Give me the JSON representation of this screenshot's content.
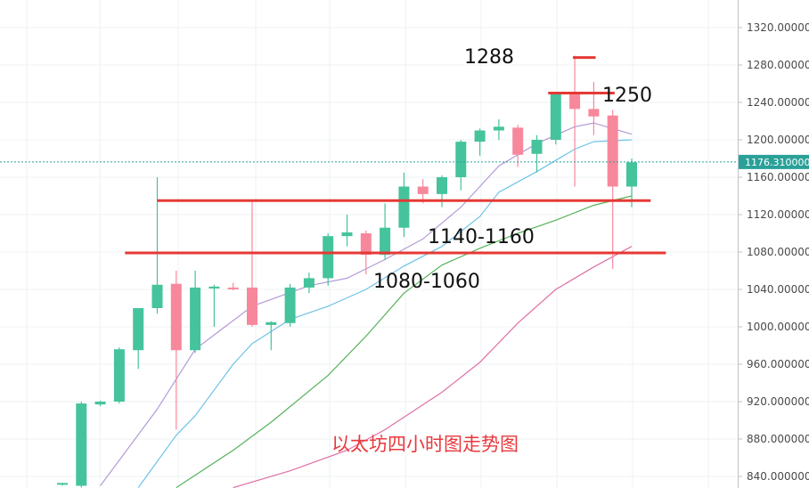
{
  "caption": "以太坊四小时图走势图",
  "price_tag": "1176.310000",
  "colors": {
    "up": "#45c39c",
    "down": "#f7889c",
    "ma_purple": "#b49ad6",
    "ma_blue": "#6fc3e8",
    "ma_green": "#57b25a",
    "ma_pink": "#e06fa6",
    "level_line": "#e53935",
    "grid": "#eef0f3"
  },
  "annotations": [
    {
      "text": "1288",
      "level": 1288
    },
    {
      "text": "1250",
      "level": 1250
    },
    {
      "text": "1140-1160",
      "level": 1135
    },
    {
      "text": "1080-1060",
      "level": 1079
    }
  ],
  "chart_data": {
    "type": "candlestick",
    "y_axis": {
      "ticks": [
        "1320.000000",
        "1280.000000",
        "1240.000000",
        "1200.000000",
        "1160.000000",
        "1120.000000",
        "1080.000000",
        "1040.000000",
        "1000.000000",
        "960.000000",
        "920.000000",
        "880.000000",
        "840.000000"
      ],
      "range": [
        828,
        1335
      ]
    },
    "last_price": 1176.31,
    "candles": [
      {
        "o": 832,
        "h": 833,
        "l": 830,
        "c": 833
      },
      {
        "o": 830,
        "h": 920,
        "l": 828,
        "c": 918
      },
      {
        "o": 917,
        "h": 921,
        "l": 915,
        "c": 920
      },
      {
        "o": 920,
        "h": 978,
        "l": 918,
        "c": 976
      },
      {
        "o": 975,
        "h": 1020,
        "l": 955,
        "c": 1020
      },
      {
        "o": 1020,
        "h": 1160,
        "l": 1014,
        "c": 1045
      },
      {
        "o": 1046,
        "h": 1060,
        "l": 890,
        "c": 975
      },
      {
        "o": 975,
        "h": 1060,
        "l": 972,
        "c": 1042
      },
      {
        "o": 1041,
        "h": 1045,
        "l": 1000,
        "c": 1043
      },
      {
        "o": 1042,
        "h": 1047,
        "l": 1039,
        "c": 1041
      },
      {
        "o": 1042,
        "h": 1135,
        "l": 1000,
        "c": 1002
      },
      {
        "o": 1002,
        "h": 1006,
        "l": 975,
        "c": 1005
      },
      {
        "o": 1004,
        "h": 1046,
        "l": 1000,
        "c": 1042
      },
      {
        "o": 1042,
        "h": 1058,
        "l": 1036,
        "c": 1052
      },
      {
        "o": 1052,
        "h": 1100,
        "l": 1044,
        "c": 1097
      },
      {
        "o": 1097,
        "h": 1120,
        "l": 1086,
        "c": 1101
      },
      {
        "o": 1100,
        "h": 1103,
        "l": 1056,
        "c": 1077
      },
      {
        "o": 1077,
        "h": 1132,
        "l": 1072,
        "c": 1106
      },
      {
        "o": 1106,
        "h": 1165,
        "l": 1096,
        "c": 1150
      },
      {
        "o": 1150,
        "h": 1158,
        "l": 1132,
        "c": 1142
      },
      {
        "o": 1142,
        "h": 1162,
        "l": 1128,
        "c": 1160
      },
      {
        "o": 1160,
        "h": 1200,
        "l": 1146,
        "c": 1198
      },
      {
        "o": 1198,
        "h": 1212,
        "l": 1183,
        "c": 1210
      },
      {
        "o": 1210,
        "h": 1222,
        "l": 1200,
        "c": 1214
      },
      {
        "o": 1213,
        "h": 1216,
        "l": 1171,
        "c": 1184
      },
      {
        "o": 1185,
        "h": 1205,
        "l": 1165,
        "c": 1200
      },
      {
        "o": 1200,
        "h": 1250,
        "l": 1195,
        "c": 1250
      },
      {
        "o": 1250,
        "h": 1290,
        "l": 1150,
        "c": 1233
      },
      {
        "o": 1233,
        "h": 1262,
        "l": 1205,
        "c": 1225
      },
      {
        "o": 1226,
        "h": 1232,
        "l": 1062,
        "c": 1150
      },
      {
        "o": 1150,
        "h": 1180,
        "l": 1128,
        "c": 1176
      }
    ],
    "moving_averages": [
      {
        "color_key": "ma_purple",
        "points": [
          [
            2,
            830
          ],
          [
            5,
            912
          ],
          [
            7,
            976
          ],
          [
            10,
            1022
          ],
          [
            13,
            1044
          ],
          [
            15,
            1052
          ],
          [
            17,
            1072
          ],
          [
            19,
            1094
          ],
          [
            21,
            1128
          ],
          [
            23,
            1172
          ],
          [
            25,
            1196
          ],
          [
            27,
            1214
          ],
          [
            28,
            1218
          ],
          [
            30,
            1206
          ]
        ]
      },
      {
        "color_key": "ma_blue",
        "points": [
          [
            4,
            828
          ],
          [
            6,
            884
          ],
          [
            7,
            905
          ],
          [
            9,
            960
          ],
          [
            10,
            982
          ],
          [
            12,
            1008
          ],
          [
            14,
            1022
          ],
          [
            16,
            1040
          ],
          [
            18,
            1065
          ],
          [
            20,
            1086
          ],
          [
            22,
            1118
          ],
          [
            23,
            1144
          ],
          [
            25,
            1166
          ],
          [
            27,
            1190
          ],
          [
            28,
            1198
          ],
          [
            30,
            1200
          ]
        ]
      },
      {
        "color_key": "ma_green",
        "points": [
          [
            6,
            828
          ],
          [
            9,
            868
          ],
          [
            11,
            898
          ],
          [
            14,
            948
          ],
          [
            16,
            990
          ],
          [
            18,
            1036
          ],
          [
            20,
            1066
          ],
          [
            22,
            1084
          ],
          [
            24,
            1100
          ],
          [
            26,
            1114
          ],
          [
            28,
            1130
          ],
          [
            30,
            1140
          ]
        ]
      },
      {
        "color_key": "ma_pink",
        "points": [
          [
            9,
            828
          ],
          [
            12,
            846
          ],
          [
            15,
            868
          ],
          [
            17,
            890
          ],
          [
            20,
            930
          ],
          [
            22,
            962
          ],
          [
            24,
            1004
          ],
          [
            26,
            1040
          ],
          [
            28,
            1064
          ],
          [
            30,
            1086
          ]
        ]
      }
    ],
    "levels": [
      {
        "value": 1288,
        "x_from": 26.9,
        "x_to": 28.1
      },
      {
        "value": 1250,
        "x_from": 25.6,
        "x_to": 29.1
      },
      {
        "value": 1135,
        "x_from": 5.0,
        "x_to": 31.0
      },
      {
        "value": 1079,
        "x_from": 3.3,
        "x_to": 31.8
      }
    ]
  }
}
